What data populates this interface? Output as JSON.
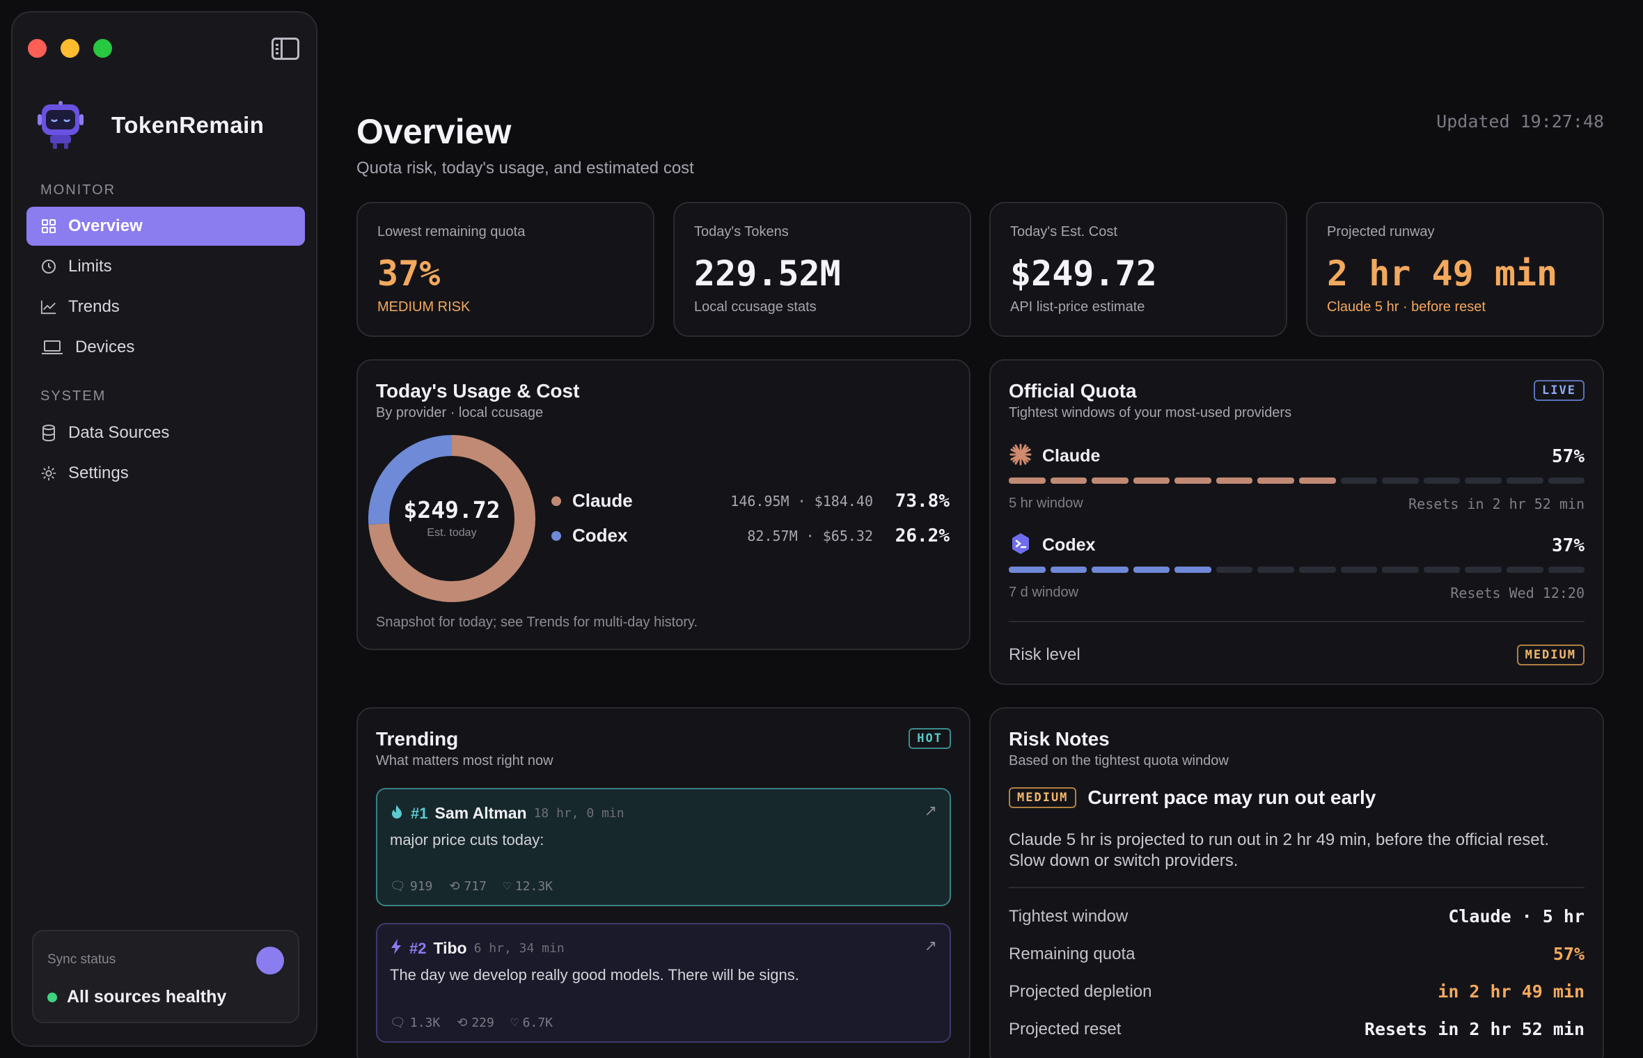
{
  "app": {
    "name": "TokenRemain"
  },
  "sidebar": {
    "monitor_label": "MONITOR",
    "system_label": "SYSTEM",
    "monitor_items": [
      {
        "label": "Overview",
        "icon": "grid-icon",
        "active": true
      },
      {
        "label": "Limits",
        "icon": "clock-icon"
      },
      {
        "label": "Trends",
        "icon": "line-chart-icon"
      },
      {
        "label": "Devices",
        "icon": "laptop-icon"
      }
    ],
    "system_items": [
      {
        "label": "Data Sources",
        "icon": "database-icon"
      },
      {
        "label": "Settings",
        "icon": "gear-icon"
      }
    ],
    "sync": {
      "label": "Sync status",
      "status": "All sources healthy"
    }
  },
  "header": {
    "title": "Overview",
    "subtitle": "Quota risk, today's usage, and estimated cost",
    "updated": "Updated 19:27:48"
  },
  "stats": [
    {
      "label": "Lowest remaining quota",
      "value": "37%",
      "sub": "MEDIUM RISK"
    },
    {
      "label": "Today's Tokens",
      "value": "229.52M",
      "sub": "Local ccusage stats"
    },
    {
      "label": "Today's Est. Cost",
      "value": "$249.72",
      "sub": "API list-price estimate"
    },
    {
      "label": "Projected runway",
      "value": "2 hr 49 min",
      "sub": "Claude 5 hr · before reset"
    }
  ],
  "usage": {
    "title": "Today's Usage & Cost",
    "subtitle": "By provider · local ccusage",
    "center_value": "$249.72",
    "center_label": "Est. today",
    "footer": "Snapshot for today; see Trends for multi-day history.",
    "providers": [
      {
        "name": "Claude",
        "stats": "146.95M · $184.40",
        "pct": "73.8%",
        "share": 73.8,
        "color": "#c08a74"
      },
      {
        "name": "Codex",
        "stats": "82.57M · $65.32",
        "pct": "26.2%",
        "share": 26.2,
        "color": "#6f8ad6"
      }
    ]
  },
  "quota": {
    "title": "Official Quota",
    "subtitle": "Tightest windows of your most-used providers",
    "badge": "LIVE",
    "providers": [
      {
        "name": "Claude",
        "pct": "57%",
        "filled_segments": 8,
        "total_segments": 14,
        "window": "5 hr window",
        "reset": "Resets in 2 hr 52 min",
        "color": "#c08a74"
      },
      {
        "name": "Codex",
        "pct": "37%",
        "filled_segments": 5,
        "total_segments": 14,
        "window": "7 d window",
        "reset": "Resets Wed 12:20",
        "color": "#7088d8"
      }
    ],
    "risk_label": "Risk level",
    "risk_badge": "MEDIUM"
  },
  "trending": {
    "title": "Trending",
    "subtitle": "What matters most right now",
    "badge": "HOT",
    "posts": [
      {
        "rank": "#1",
        "author": "Sam Altman",
        "time": "18 hr, 0 min",
        "text": "major price cuts today:",
        "replies": "919",
        "reposts": "717",
        "likes": "12.3K"
      },
      {
        "rank": "#2",
        "author": "Tibo",
        "time": "6 hr, 34 min",
        "text": "The day we develop really good models. There will be signs.",
        "replies": "1.3K",
        "reposts": "229",
        "likes": "6.7K"
      }
    ]
  },
  "risk": {
    "title": "Risk Notes",
    "subtitle": "Based on the tightest quota window",
    "badge": "MEDIUM",
    "headline": "Current pace may run out early",
    "body": "Claude 5 hr is projected to run out in 2 hr 49 min, before the official reset. Slow down or switch providers.",
    "rows": [
      {
        "key": "Tightest window",
        "value": "Claude · 5 hr"
      },
      {
        "key": "Remaining quota",
        "value": "57%"
      },
      {
        "key": "Projected depletion",
        "value": "in 2 hr 49 min"
      },
      {
        "key": "Projected reset",
        "value": "Resets in 2 hr 52 min"
      }
    ]
  }
}
